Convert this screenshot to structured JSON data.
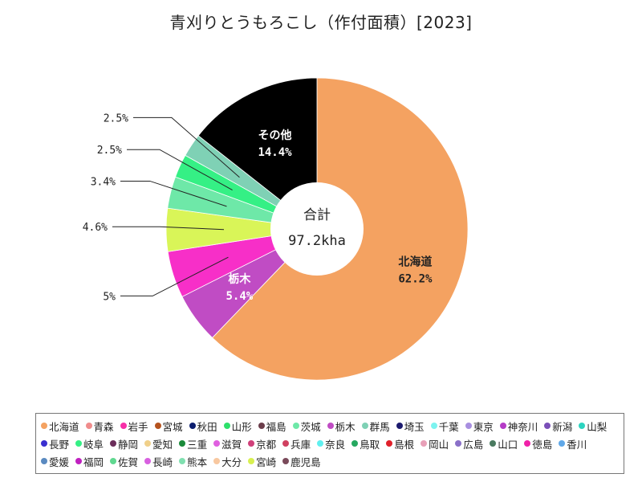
{
  "title": "青刈りとうもろこし（作付面積）[2023]",
  "center_label": {
    "line1": "合計",
    "line2": "97.2kha"
  },
  "chart_data": {
    "type": "pie",
    "donut": true,
    "total": "97.2kha",
    "slices": [
      {
        "name": "北海道",
        "value": 62.2,
        "label": "62.2%",
        "color": "#f4a261"
      },
      {
        "name": "栃木",
        "value": 5.4,
        "label": "5.4%",
        "color": "#c04cc4"
      },
      {
        "name": "",
        "value": 5.0,
        "label": "5%",
        "color": "#f72fc8"
      },
      {
        "name": "",
        "value": 4.6,
        "label": "4.6%",
        "color": "#d9f558"
      },
      {
        "name": "",
        "value": 3.4,
        "label": "3.4%",
        "color": "#6ee8a8"
      },
      {
        "name": "",
        "value": 2.5,
        "label": "2.5%",
        "color": "#35f085"
      },
      {
        "name": "",
        "value": 2.5,
        "label": "2.5%",
        "color": "#7fd1b5"
      },
      {
        "name": "その他",
        "value": 14.4,
        "label": "14.4%",
        "color": "#000000"
      }
    ]
  },
  "legend": [
    {
      "label": "北海道",
      "color": "#f4a261"
    },
    {
      "label": "青森",
      "color": "#f08c8c"
    },
    {
      "label": "岩手",
      "color": "#f72fa8"
    },
    {
      "label": "宮城",
      "color": "#b5531f"
    },
    {
      "label": "秋田",
      "color": "#0b1d6e"
    },
    {
      "label": "山形",
      "color": "#2ee06b"
    },
    {
      "label": "福島",
      "color": "#6b3d4a"
    },
    {
      "label": "茨城",
      "color": "#6ee8a8"
    },
    {
      "label": "栃木",
      "color": "#c04cc4"
    },
    {
      "label": "群馬",
      "color": "#7fd1b5"
    },
    {
      "label": "埼玉",
      "color": "#1c1a6e"
    },
    {
      "label": "千葉",
      "color": "#7df3f0"
    },
    {
      "label": "東京",
      "color": "#a88fe0"
    },
    {
      "label": "神奈川",
      "color": "#b53cc7"
    },
    {
      "label": "新潟",
      "color": "#7a4fb8"
    },
    {
      "label": "山梨",
      "color": "#2dd4c0"
    },
    {
      "label": "長野",
      "color": "#3a2fd0"
    },
    {
      "label": "岐阜",
      "color": "#35f085"
    },
    {
      "label": "静岡",
      "color": "#6b2d5a"
    },
    {
      "label": "愛知",
      "color": "#f0d08a"
    },
    {
      "label": "三重",
      "color": "#1a8a3a"
    },
    {
      "label": "滋賀",
      "color": "#e060e0"
    },
    {
      "label": "京都",
      "color": "#d0407a"
    },
    {
      "label": "兵庫",
      "color": "#d04060"
    },
    {
      "label": "奈良",
      "color": "#60f0f0"
    },
    {
      "label": "鳥取",
      "color": "#25a860"
    },
    {
      "label": "島根",
      "color": "#e0202a"
    },
    {
      "label": "岡山",
      "color": "#e8a0b8"
    },
    {
      "label": "広島",
      "color": "#8a70c8"
    },
    {
      "label": "山口",
      "color": "#4a7a60"
    },
    {
      "label": "徳島",
      "color": "#f020a8"
    },
    {
      "label": "香川",
      "color": "#60a8e8"
    },
    {
      "label": "愛媛",
      "color": "#5a8ac0"
    },
    {
      "label": "福岡",
      "color": "#c020c0"
    },
    {
      "label": "佐賀",
      "color": "#60d890"
    },
    {
      "label": "長崎",
      "color": "#d860e0"
    },
    {
      "label": "熊本",
      "color": "#80e0b0"
    },
    {
      "label": "大分",
      "color": "#f8c8a0"
    },
    {
      "label": "宮崎",
      "color": "#d8f050"
    },
    {
      "label": "鹿児島",
      "color": "#7a4a5a"
    }
  ]
}
